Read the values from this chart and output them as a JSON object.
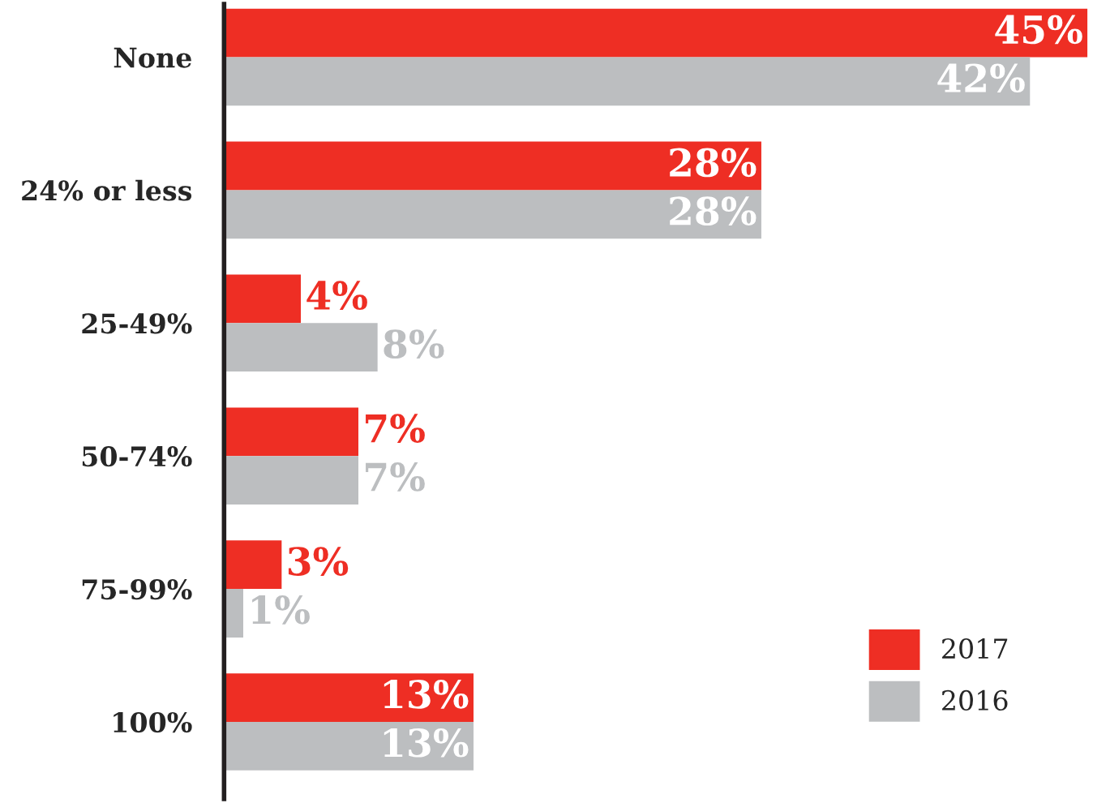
{
  "chart_data": {
    "type": "bar",
    "orientation": "horizontal",
    "categories": [
      "None",
      "24% or less",
      "25-49%",
      "50-74%",
      "75-99%",
      "100%"
    ],
    "series": [
      {
        "name": "2017",
        "color": "#ee2e24",
        "values": [
          45,
          28,
          4,
          7,
          3,
          13
        ],
        "value_labels": [
          "45%",
          "28%",
          "4%",
          "7%",
          "3%",
          "13%"
        ]
      },
      {
        "name": "2016",
        "color": "#bcbec0",
        "values": [
          42,
          28,
          8,
          7,
          1,
          13
        ],
        "value_labels": [
          "42%",
          "28%",
          "8%",
          "7%",
          "1%",
          "13%"
        ]
      }
    ],
    "legend": "bottom right",
    "grid": false
  }
}
